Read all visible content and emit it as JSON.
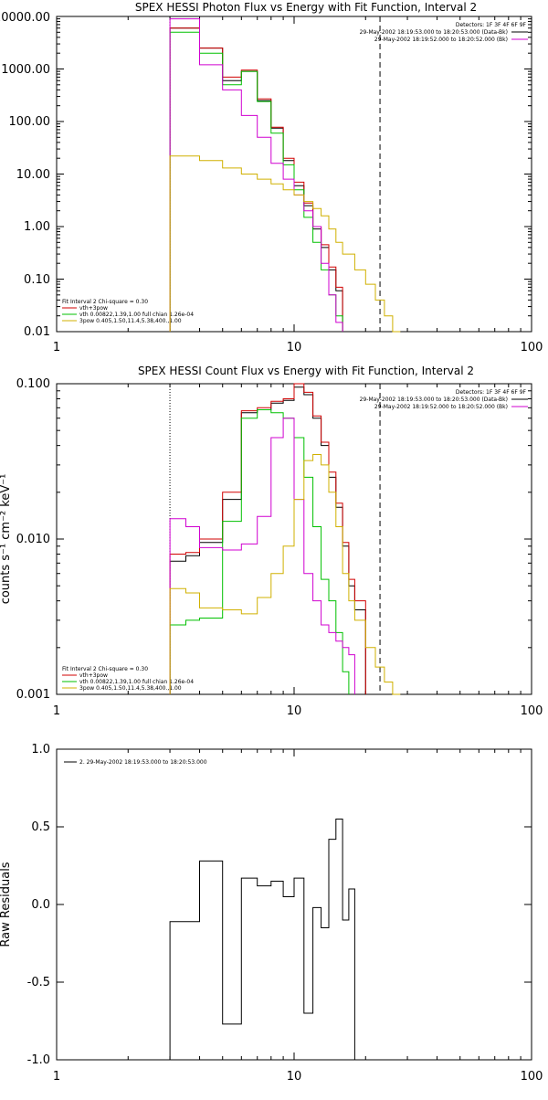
{
  "chart_data": [
    {
      "type": "line",
      "title": "SPEX HESSI Photon Flux vs Energy with Fit Function, Interval 2",
      "xscale": "log",
      "yscale": "log",
      "xlim": [
        1,
        100
      ],
      "ylim": [
        0.01,
        10000
      ],
      "xticks": [
        1,
        10,
        100
      ],
      "xtick_labels": [
        "1",
        "10",
        "100"
      ],
      "yticks": [
        0.01,
        0.1,
        1,
        10,
        100,
        1000,
        10000
      ],
      "ytick_labels": [
        "0.01",
        "0.10",
        "1.00",
        "10.00",
        "100.00",
        "1000.00",
        "10000.00"
      ],
      "vlines": [
        {
          "x": 3,
          "style": "dotted"
        },
        {
          "x": 23,
          "style": "dashed"
        }
      ],
      "header_lines": [
        "Detectors: 1F 3F 4F 6F 9F",
        "29-May-2002 18:19:53.000 to 18:20:53.000 (Data-Bk)",
        "29-May-2002 18:19:52.000 to 18:20:52.000 (Bk)"
      ],
      "header_colors": [
        "#000000",
        "#000000",
        "#d000d0"
      ],
      "legend": [
        {
          "label": "Fit Interval 2   Chi-square = 0.30",
          "color": "#000000"
        },
        {
          "label": "vth+3pow",
          "color": "#d00000"
        },
        {
          "label": "vth 0.00822,1.39,1.00  full chian 1.26e-04",
          "color": "#00c000"
        },
        {
          "label": "3pow 0.405,1.50,11.4,5.38,400.,1.00",
          "color": "#d0b000"
        }
      ],
      "edges": [
        3,
        4,
        5,
        6,
        7,
        8,
        9,
        10,
        11,
        12,
        13,
        14,
        15,
        16,
        18,
        20,
        22,
        24,
        26,
        28,
        30
      ],
      "series": [
        {
          "color": "#000000",
          "values": [
            6000,
            2500,
            600,
            900,
            250,
            75,
            18,
            6,
            2.5,
            0.9,
            0.4,
            0.15,
            0.06,
            null,
            null,
            null,
            null,
            null,
            null,
            null
          ]
        },
        {
          "color": "#d00000",
          "values": [
            6000,
            2500,
            700,
            950,
            270,
            78,
            20,
            7,
            2.8,
            1.0,
            0.45,
            0.17,
            0.07,
            null,
            null,
            null,
            null,
            null,
            null,
            null
          ]
        },
        {
          "color": "#00c000",
          "values": [
            5000,
            2000,
            500,
            900,
            240,
            60,
            15,
            5,
            1.5,
            0.5,
            0.15,
            0.05,
            0.02,
            null,
            null,
            null,
            null,
            null,
            null,
            null
          ]
        },
        {
          "color": "#d000d0",
          "values": [
            9000,
            1200,
            400,
            130,
            50,
            16,
            8,
            4,
            2,
            1,
            0.2,
            0.05,
            0.015,
            null,
            null,
            null,
            null,
            null,
            null,
            null
          ]
        },
        {
          "color": "#d0b000",
          "values": [
            22,
            18,
            13,
            10,
            8,
            6.5,
            5,
            4,
            3,
            2.2,
            1.6,
            0.9,
            0.5,
            0.3,
            0.15,
            0.08,
            0.04,
            0.02,
            0.01,
            null
          ]
        }
      ]
    },
    {
      "type": "line",
      "title": "SPEX HESSI Count Flux vs Energy with Fit Function, Interval 2",
      "ylabel": "counts s⁻¹ cm⁻² keV⁻¹",
      "xscale": "log",
      "yscale": "log",
      "xlim": [
        1,
        100
      ],
      "ylim": [
        0.001,
        0.1
      ],
      "xticks": [
        1,
        10,
        100
      ],
      "xtick_labels": [
        "1",
        "10",
        "100"
      ],
      "yticks": [
        0.001,
        0.01,
        0.1
      ],
      "ytick_labels": [
        "0.001",
        "0.010",
        "0.100"
      ],
      "vlines": [
        {
          "x": 3,
          "style": "dotted"
        },
        {
          "x": 23,
          "style": "dashed"
        }
      ],
      "header_lines": [
        "Detectors: 1F 3F 4F 6F 9F",
        "29-May-2002 18:19:53.000 to 18:20:53.000 (Data-Bk)",
        "29-May-2002 18:19:52.000 to 18:20:52.000 (Bk)"
      ],
      "header_colors": [
        "#000000",
        "#000000",
        "#d000d0"
      ],
      "legend": [
        {
          "label": "Fit Interval 2   Chi-square = 0.30",
          "color": "#000000"
        },
        {
          "label": "vth+3pow",
          "color": "#d00000"
        },
        {
          "label": "vth 0.00822,1.39,1.00  full chian 1.26e-04",
          "color": "#00c000"
        },
        {
          "label": "3pow 0.405,1.50,11.4,5.38,400.,1.00",
          "color": "#d0b000"
        }
      ],
      "edges": [
        3,
        3.5,
        4,
        5,
        6,
        7,
        8,
        9,
        10,
        11,
        12,
        13,
        14,
        15,
        16,
        17,
        18,
        20,
        22,
        24,
        26,
        28,
        30
      ],
      "series": [
        {
          "color": "#000000",
          "values": [
            0.0072,
            0.0078,
            0.0095,
            0.018,
            0.065,
            0.068,
            0.075,
            0.078,
            0.095,
            0.085,
            0.06,
            0.04,
            0.025,
            0.016,
            0.009,
            0.005,
            0.0035,
            null,
            null,
            null,
            null,
            null
          ]
        },
        {
          "color": "#d00000",
          "values": [
            0.008,
            0.0082,
            0.01,
            0.02,
            0.067,
            0.07,
            0.077,
            0.08,
            0.1,
            0.088,
            0.062,
            0.042,
            0.027,
            0.017,
            0.0095,
            0.0055,
            0.004,
            null,
            null,
            null,
            null,
            null
          ]
        },
        {
          "color": "#00c000",
          "values": [
            0.0028,
            0.003,
            0.0031,
            0.013,
            0.06,
            0.068,
            0.065,
            0.06,
            0.045,
            0.025,
            0.012,
            0.0055,
            0.004,
            0.0025,
            0.0014,
            null,
            null,
            null,
            null,
            null,
            null,
            null
          ]
        },
        {
          "color": "#d000d0",
          "values": [
            0.0135,
            0.012,
            0.0088,
            0.0085,
            0.0093,
            0.014,
            0.045,
            0.06,
            0.018,
            0.006,
            0.004,
            0.0028,
            0.0025,
            0.0022,
            0.002,
            0.0018,
            null,
            null,
            null,
            null,
            null,
            null
          ]
        },
        {
          "color": "#d0b000",
          "values": [
            0.0048,
            0.0045,
            0.0036,
            0.0035,
            0.0033,
            0.0042,
            0.006,
            0.009,
            0.018,
            0.032,
            0.035,
            0.03,
            0.02,
            0.012,
            0.006,
            0.004,
            0.003,
            0.002,
            0.0015,
            0.0012,
            0.001,
            null
          ]
        }
      ]
    },
    {
      "type": "line",
      "ylabel": "Raw Residuals",
      "xscale": "log",
      "yscale": "linear",
      "xlim": [
        1,
        100
      ],
      "ylim": [
        -1.0,
        1.0
      ],
      "xticks": [
        1,
        10,
        100
      ],
      "xtick_labels": [
        "1",
        "10",
        "100"
      ],
      "yticks": [
        -1.0,
        -0.5,
        0.0,
        0.5,
        1.0
      ],
      "ytick_labels": [
        "-1.0",
        "-0.5",
        "0.0",
        "0.5",
        "1.0"
      ],
      "legend": [
        {
          "label": "2. 29-May-2002 18:19:53.000 to 18:20:53.000",
          "color": "#000000"
        }
      ],
      "edges": [
        3,
        4,
        5,
        6,
        7,
        8,
        9,
        10,
        11,
        12,
        13,
        14,
        15,
        16,
        17,
        18,
        20
      ],
      "series": [
        {
          "color": "#000000",
          "values": [
            -0.11,
            0.28,
            -0.77,
            0.17,
            0.12,
            0.15,
            0.05,
            0.17,
            -0.7,
            -0.02,
            -0.15,
            0.42,
            0.55,
            -0.1,
            0.1,
            -1.0
          ]
        }
      ]
    }
  ]
}
